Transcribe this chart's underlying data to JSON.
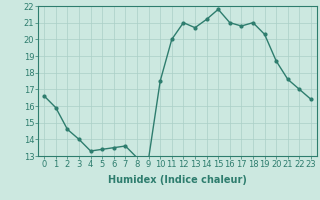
{
  "x": [
    0,
    1,
    2,
    3,
    4,
    5,
    6,
    7,
    8,
    9,
    10,
    11,
    12,
    13,
    14,
    15,
    16,
    17,
    18,
    19,
    20,
    21,
    22,
    23
  ],
  "y": [
    16.6,
    15.9,
    14.6,
    14.0,
    13.3,
    13.4,
    13.5,
    13.6,
    12.9,
    12.85,
    17.5,
    20.0,
    21.0,
    20.7,
    21.2,
    21.8,
    21.0,
    20.8,
    21.0,
    20.3,
    18.7,
    17.6,
    17.0,
    16.4
  ],
  "line_color": "#2e7d6e",
  "marker": "o",
  "marker_size": 2,
  "bg_color": "#cce8e0",
  "grid_color": "#aacfc7",
  "xlabel": "Humidex (Indice chaleur)",
  "ylim": [
    13,
    22
  ],
  "xlim": [
    -0.5,
    23.5
  ],
  "yticks": [
    13,
    14,
    15,
    16,
    17,
    18,
    19,
    20,
    21,
    22
  ],
  "xticks": [
    0,
    1,
    2,
    3,
    4,
    5,
    6,
    7,
    8,
    9,
    10,
    11,
    12,
    13,
    14,
    15,
    16,
    17,
    18,
    19,
    20,
    21,
    22,
    23
  ],
  "xlabel_fontsize": 7,
  "tick_fontsize": 6,
  "line_width": 1.0
}
